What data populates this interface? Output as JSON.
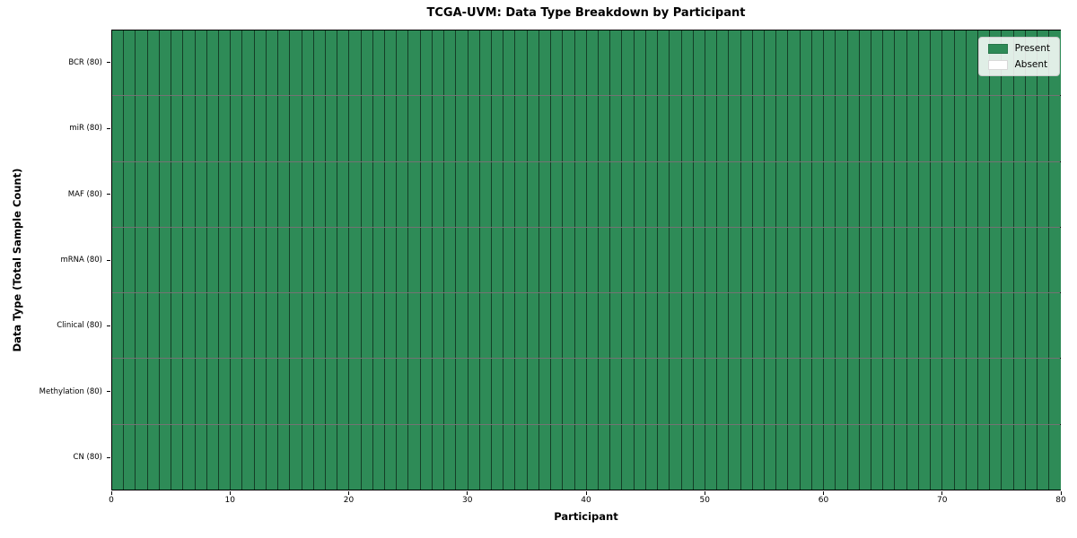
{
  "chart_data": {
    "type": "heatmap",
    "title": "TCGA-UVM: Data Type Breakdown by Participant",
    "xlabel": "Participant",
    "ylabel": "Data Type (Total Sample Count)",
    "xlim": [
      0,
      80
    ],
    "x_ticks": [
      0,
      10,
      20,
      30,
      40,
      50,
      60,
      70,
      80
    ],
    "n_participants": 80,
    "rows": [
      {
        "label": "BCR (80)",
        "total": 80,
        "present": 80,
        "absent": 0
      },
      {
        "label": "miR (80)",
        "total": 80,
        "present": 80,
        "absent": 0
      },
      {
        "label": "MAF (80)",
        "total": 80,
        "present": 80,
        "absent": 0
      },
      {
        "label": "mRNA (80)",
        "total": 80,
        "present": 80,
        "absent": 0
      },
      {
        "label": "Clinical (80)",
        "total": 80,
        "present": 80,
        "absent": 0
      },
      {
        "label": "Methylation (80)",
        "total": 80,
        "present": 80,
        "absent": 0
      },
      {
        "label": "CN (80)",
        "total": 80,
        "present": 80,
        "absent": 0
      }
    ],
    "present_color": "#2e8b57",
    "absent_color": "#ffffff",
    "cell_edge_color": "rgba(0,0,0,0.55)",
    "legend_items": [
      {
        "label": "Present",
        "color": "#2e8b57"
      },
      {
        "label": "Absent",
        "color": "#ffffff"
      }
    ],
    "legend_position": "upper right",
    "grid": "cell-borders"
  }
}
